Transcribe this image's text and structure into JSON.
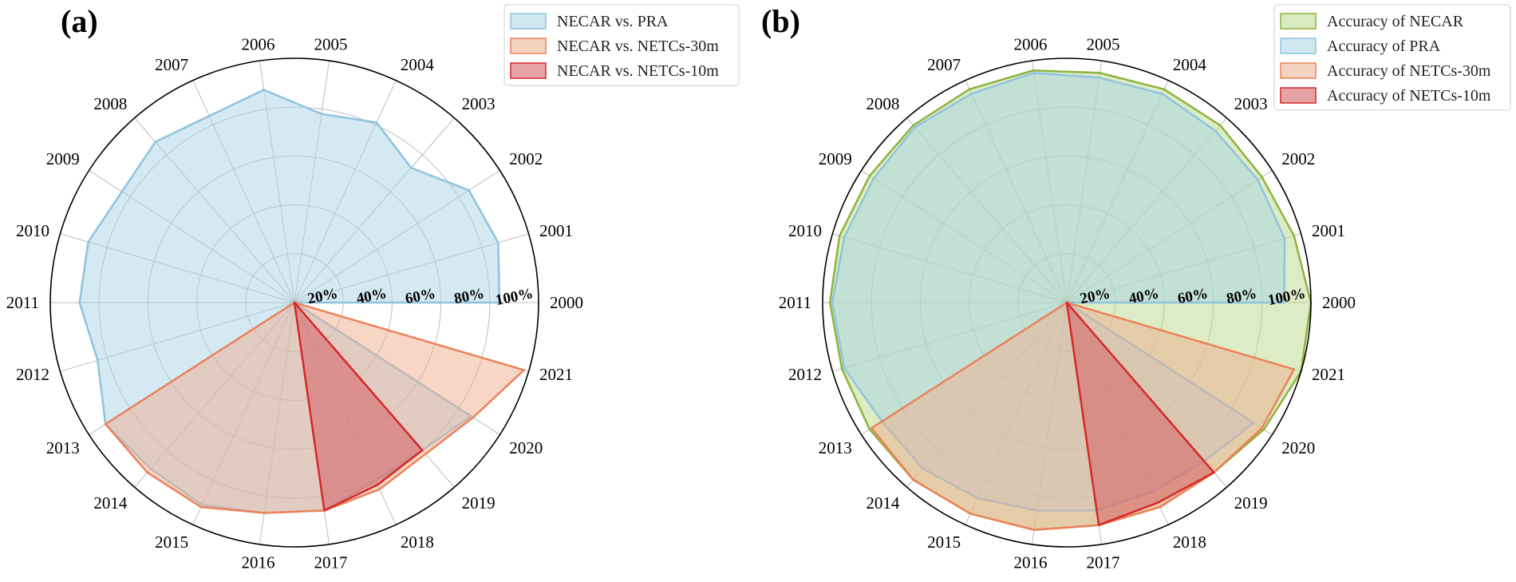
{
  "chart_data": [
    {
      "type": "radar",
      "panel": "(a)",
      "categories": [
        "2000",
        "2001",
        "2002",
        "2003",
        "2004",
        "2005",
        "2006",
        "2007",
        "2008",
        "2009",
        "2010",
        "2011",
        "2012",
        "2013",
        "2014",
        "2015",
        "2016",
        "2017",
        "2018",
        "2019",
        "2020",
        "2021"
      ],
      "radial_ticks": [
        "20%",
        "40%",
        "60%",
        "80%",
        "100%"
      ],
      "rlim": [
        0,
        100
      ],
      "legend_position": "top-right",
      "series": [
        {
          "name": "NECAR vs. PRA",
          "color": "#8fc3de",
          "fill": "#a9d3e6",
          "values": [
            84,
            87,
            85,
            73,
            81,
            78,
            88,
            84,
            87,
            84,
            88,
            88,
            84,
            92,
            90,
            91,
            87,
            86,
            80,
            80,
            86,
            0
          ]
        },
        {
          "name": "NECAR vs. NETCs-30m",
          "color": "#ed8159",
          "fill": "#efae8e",
          "values": [
            0,
            0,
            0,
            0,
            0,
            0,
            0,
            0,
            0,
            0,
            0,
            0,
            0,
            92,
            92,
            92,
            87,
            86,
            84,
            82,
            87,
            98
          ]
        },
        {
          "name": "NECAR vs. NETCs-10m",
          "color": "#d62728",
          "fill": "#d4555d",
          "values": [
            0,
            0,
            0,
            0,
            0,
            0,
            0,
            0,
            0,
            0,
            0,
            0,
            0,
            0,
            0,
            0,
            0,
            86,
            82,
            80,
            0,
            0
          ]
        }
      ]
    },
    {
      "type": "radar",
      "panel": "(b)",
      "categories": [
        "2000",
        "2001",
        "2002",
        "2003",
        "2004",
        "2005",
        "2006",
        "2007",
        "2008",
        "2009",
        "2010",
        "2011",
        "2012",
        "2013",
        "2014",
        "2015",
        "2016",
        "2017",
        "2018",
        "2019",
        "2020",
        "2021"
      ],
      "radial_ticks": [
        "20%",
        "40%",
        "60%",
        "80%",
        "100%"
      ],
      "rlim": [
        0,
        100
      ],
      "legend_position": "top-right",
      "series": [
        {
          "name": "Accuracy of NECAR",
          "color": "#8db33e",
          "fill": "#bcd98a",
          "values": [
            100,
            97,
            95,
            96,
            96,
            95,
            96,
            96,
            96,
            96,
            97,
            97,
            96,
            96,
            96,
            95,
            94,
            92,
            92,
            92,
            96,
            100
          ]
        },
        {
          "name": "Accuracy of PRA",
          "color": "#8fc3de",
          "fill": "#a9d3e6",
          "values": [
            89,
            93,
            93,
            93,
            94,
            93,
            95,
            94,
            95,
            94,
            95,
            96,
            95,
            90,
            90,
            88,
            86,
            86,
            85,
            86,
            91,
            0
          ]
        },
        {
          "name": "Accuracy of NETCs-30m",
          "color": "#ed8159",
          "fill": "#efae8e",
          "values": [
            0,
            0,
            0,
            0,
            0,
            0,
            0,
            0,
            0,
            0,
            0,
            0,
            0,
            95,
            96,
            95,
            94,
            92,
            92,
            92,
            95,
            97
          ]
        },
        {
          "name": "Accuracy of NETCs-10m",
          "color": "#d62728",
          "fill": "#d4555d",
          "values": [
            0,
            0,
            0,
            0,
            0,
            0,
            0,
            0,
            0,
            0,
            0,
            0,
            0,
            0,
            0,
            0,
            0,
            92,
            90,
            92,
            0,
            0
          ]
        }
      ]
    }
  ]
}
